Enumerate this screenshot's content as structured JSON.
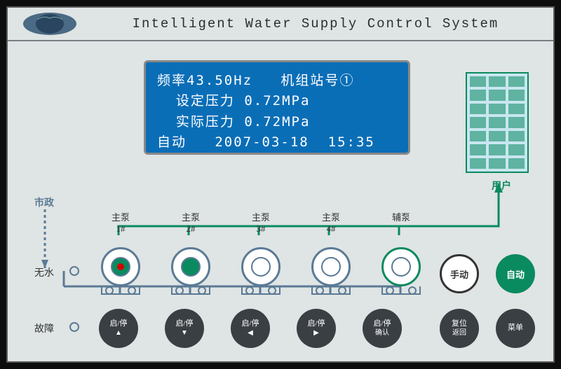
{
  "header": {
    "title": "Intelligent Water Supply Control System"
  },
  "lcd": {
    "freq_label": "频率",
    "freq_value": "43.50Hz",
    "station_label": "机组站号",
    "station_value": "①",
    "set_pressure_label": "设定压力",
    "set_pressure_value": "0.72MPa",
    "actual_pressure_label": "实际压力",
    "actual_pressure_value": "0.72MPa",
    "mode": "自动",
    "date": "2007-03-18",
    "time": "15:35"
  },
  "labels": {
    "user": "用户",
    "city": "市政",
    "nowater": "无水",
    "fault": "故障"
  },
  "pumps": [
    {
      "label1": "主泵",
      "label2": "1#",
      "running": true,
      "fault_dot": true
    },
    {
      "label1": "主泵",
      "label2": "2#",
      "running": true,
      "fault_dot": false
    },
    {
      "label1": "主泵",
      "label2": "3#",
      "running": false,
      "fault_dot": false
    },
    {
      "label1": "主泵",
      "label2": "4#",
      "running": false,
      "fault_dot": false
    },
    {
      "label1": "辅泵",
      "label2": "",
      "running": false,
      "fault_dot": false,
      "aux": true
    }
  ],
  "pump_buttons": [
    {
      "l1": "启/停",
      "l2": "▲"
    },
    {
      "l1": "启/停",
      "l2": "▼"
    },
    {
      "l1": "启/停",
      "l2": "◀"
    },
    {
      "l1": "启/停",
      "l2": "▶"
    },
    {
      "l1": "启/停",
      "l2": "确认"
    }
  ],
  "mode_buttons": {
    "manual": "手动",
    "auto": "自动"
  },
  "lower_buttons": [
    {
      "l1": "复位",
      "l2": "返回"
    },
    {
      "l1": "菜单",
      "l2": ""
    }
  ],
  "colors": {
    "panel_bg": "#dfe4e4",
    "lcd_bg": "#0a6eb7",
    "green": "#0a8a5f",
    "blue": "#5a7a95",
    "dark_btn": "#3a3f44",
    "red": "#d40000"
  }
}
